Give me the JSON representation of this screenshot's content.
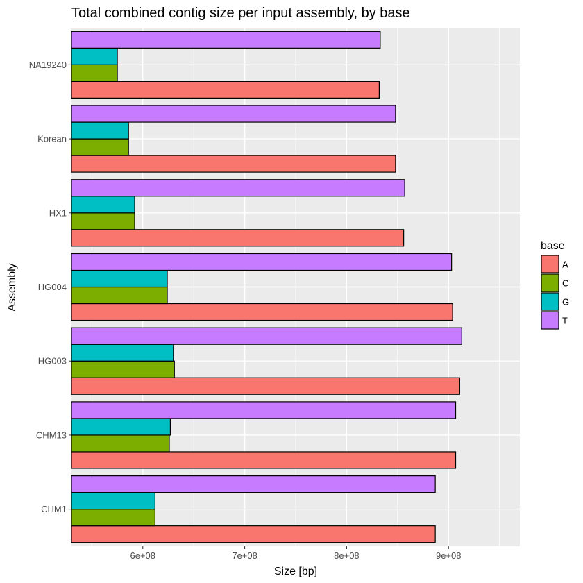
{
  "chart_data": {
    "type": "bar",
    "orientation": "horizontal",
    "title": "Total combined contig size per input assembly, by base",
    "xlabel": "Size [bp]",
    "ylabel": "Assembly",
    "xlim": [
      530000000,
      970000000
    ],
    "x_ticks": [
      600000000,
      700000000,
      800000000,
      900000000
    ],
    "x_tick_labels": [
      "6e+08",
      "7e+08",
      "8e+08",
      "9e+08"
    ],
    "categories": [
      "CHM1",
      "CHM13",
      "HG003",
      "HG004",
      "HX1",
      "Korean",
      "NA19240"
    ],
    "series": [
      {
        "name": "A",
        "color": "#F8766D",
        "values": [
          887000000,
          907000000,
          911000000,
          904000000,
          856000000,
          848000000,
          832000000
        ]
      },
      {
        "name": "C",
        "color": "#7CAE00",
        "values": [
          612000000,
          626000000,
          631000000,
          624000000,
          592000000,
          586000000,
          575000000
        ]
      },
      {
        "name": "G",
        "color": "#00BFC4",
        "values": [
          612000000,
          627000000,
          630000000,
          624000000,
          592000000,
          586000000,
          575000000
        ]
      },
      {
        "name": "T",
        "color": "#C77CFF",
        "values": [
          887000000,
          907000000,
          913000000,
          903000000,
          857000000,
          848000000,
          833000000
        ]
      }
    ],
    "legend": {
      "title": "base",
      "position": "right"
    },
    "grid": true,
    "panel_background": "#EBEBEB"
  }
}
